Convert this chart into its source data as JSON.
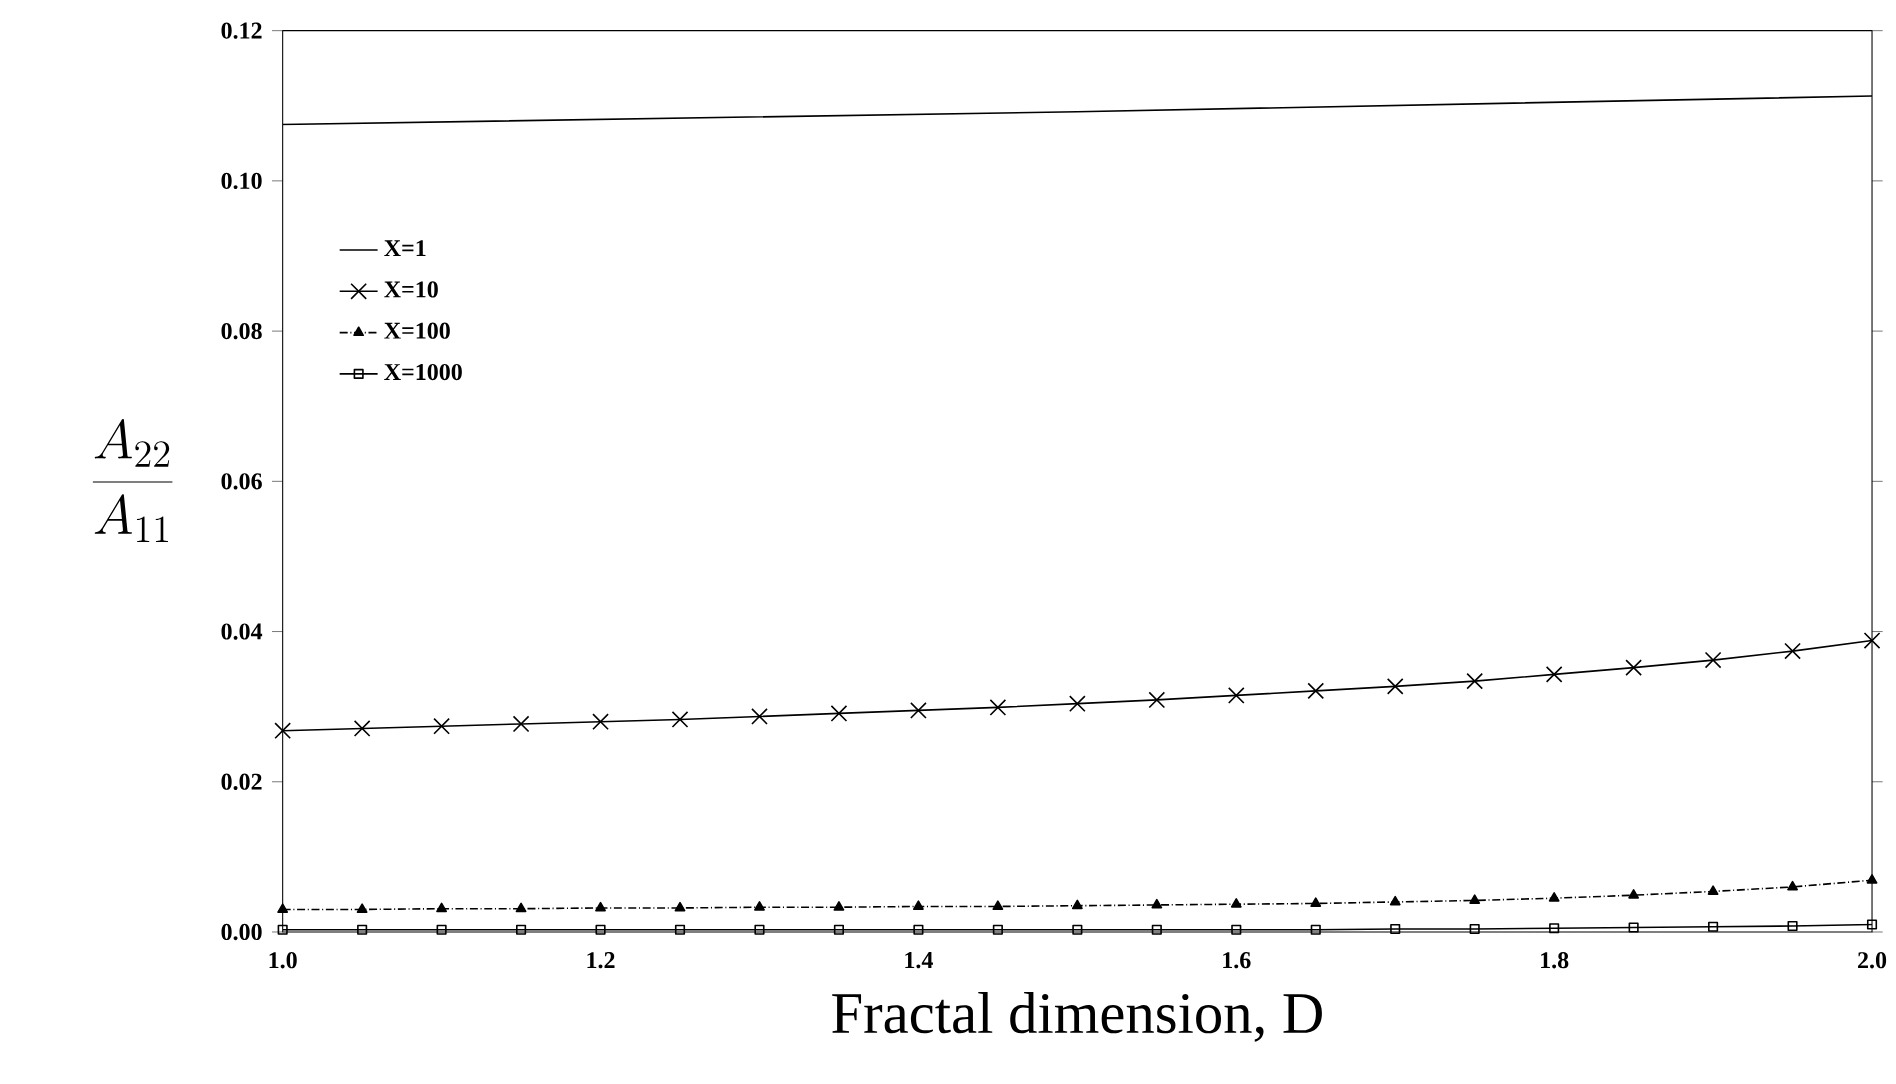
{
  "chart_data": {
    "type": "line",
    "xlabel": "Fractal dimension, D",
    "ylabel": "\\frac{A_{22}}{A_{11}}",
    "xlim": [
      1.0,
      2.0
    ],
    "ylim": [
      0,
      0.12
    ],
    "xticks": [
      {
        "value": 1.0,
        "label": "1.0"
      },
      {
        "value": 1.2,
        "label": "1.2"
      },
      {
        "value": 1.4,
        "label": "1.4"
      },
      {
        "value": 1.6,
        "label": "1.6"
      },
      {
        "value": 1.8,
        "label": "1.8"
      },
      {
        "value": 2.0,
        "label": "2.0"
      }
    ],
    "yticks": [
      {
        "value": 0,
        "label": "0.00"
      },
      {
        "value": 0.02,
        "label": "0.02"
      },
      {
        "value": 0.04,
        "label": "0.04"
      },
      {
        "value": 0.06,
        "label": "0.06"
      },
      {
        "value": 0.08,
        "label": "0.08"
      },
      {
        "value": 0.1,
        "label": "0.10"
      },
      {
        "value": 0.12,
        "label": "0.12"
      }
    ],
    "x": [
      1.0,
      1.05,
      1.1,
      1.15,
      1.2,
      1.25,
      1.3,
      1.35,
      1.4,
      1.45,
      1.5,
      1.55,
      1.6,
      1.65,
      1.7,
      1.75,
      1.8,
      1.85,
      1.9,
      1.95,
      2.0
    ],
    "legend": "top left",
    "series": [
      {
        "name": "X=1",
        "color": "#000000",
        "marker": "none",
        "line_style": "solid",
        "x": [
          1.0,
          1.5,
          2.0
        ],
        "values": [
          0.1075,
          0.1092,
          0.1113
        ]
      },
      {
        "name": "X=10",
        "color": "#000000",
        "marker": "cross",
        "line_style": "solid",
        "values": [
          0.0268,
          0.0271,
          0.0274,
          0.0277,
          0.028,
          0.0283,
          0.0287,
          0.0291,
          0.0295,
          0.0299,
          0.0304,
          0.0309,
          0.0315,
          0.0321,
          0.0327,
          0.0334,
          0.0343,
          0.0352,
          0.0362,
          0.0374,
          0.0388
        ]
      },
      {
        "name": "X=100",
        "color": "#000000",
        "marker": "triangle",
        "line_style": "dotted",
        "values": [
          0.003,
          0.003,
          0.0031,
          0.0031,
          0.0032,
          0.0032,
          0.0033,
          0.0033,
          0.0034,
          0.0034,
          0.0035,
          0.0036,
          0.0037,
          0.0038,
          0.004,
          0.0042,
          0.0045,
          0.0049,
          0.0054,
          0.006,
          0.0069
        ]
      },
      {
        "name": "X=1000",
        "color": "#000000",
        "marker": "square",
        "line_style": "solid",
        "values": [
          0.0003,
          0.0003,
          0.0003,
          0.0003,
          0.0003,
          0.0003,
          0.0003,
          0.0003,
          0.0003,
          0.0003,
          0.0003,
          0.0003,
          0.0003,
          0.0003,
          0.0004,
          0.0004,
          0.0005,
          0.0006,
          0.0007,
          0.0008,
          0.001
        ]
      }
    ]
  }
}
